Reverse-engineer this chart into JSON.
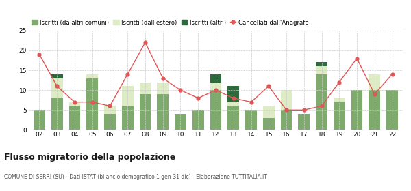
{
  "years": [
    "02",
    "03",
    "04",
    "05",
    "06",
    "07",
    "08",
    "09",
    "10",
    "11",
    "12",
    "13",
    "14",
    "15",
    "16",
    "17",
    "18",
    "19",
    "20",
    "21",
    "22"
  ],
  "iscritti_comuni": [
    5,
    8,
    6,
    13,
    4,
    6,
    9,
    9,
    4,
    5,
    10,
    6,
    5,
    3,
    5,
    4,
    14,
    7,
    10,
    10,
    10
  ],
  "iscritti_estero": [
    0,
    5,
    1,
    1,
    2,
    5,
    3,
    3,
    0,
    0,
    2,
    1,
    0,
    3,
    5,
    0,
    2,
    1,
    0,
    4,
    0
  ],
  "iscritti_altri": [
    0,
    1,
    0,
    0,
    0,
    0,
    0,
    0,
    0,
    0,
    2,
    4,
    0,
    0,
    0,
    0,
    1,
    0,
    0,
    0,
    0
  ],
  "cancellati": [
    19,
    11,
    7,
    7,
    6,
    14,
    22,
    13,
    10,
    8,
    10,
    8,
    7,
    11,
    5,
    5,
    6,
    12,
    18,
    9,
    14
  ],
  "color_comuni": "#7faa6e",
  "color_estero": "#ddecc4",
  "color_altri": "#2d6b3c",
  "color_cancellati": "#e05555",
  "ylim": [
    0,
    25
  ],
  "yticks": [
    0,
    5,
    10,
    15,
    20,
    25
  ],
  "title": "Flusso migratorio della popolazione",
  "subtitle": "COMUNE DI SERRI (SU) - Dati ISTAT (bilancio demografico 1 gen-31 dic) - Elaborazione TUTTITALIA.IT",
  "legend_labels": [
    "Iscritti (da altri comuni)",
    "Iscritti (dall'estero)",
    "Iscritti (altri)",
    "Cancellati dall'Anagrafe"
  ],
  "grid_color": "#cccccc",
  "background_color": "#ffffff"
}
